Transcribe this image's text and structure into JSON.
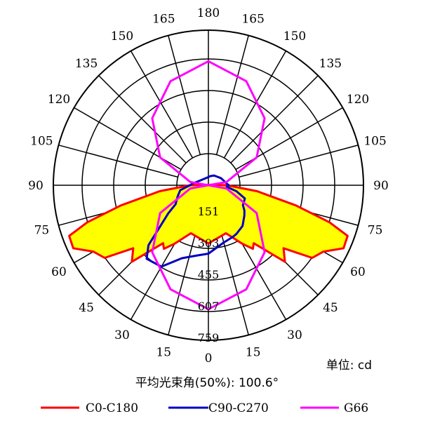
{
  "chart_data": {
    "type": "polar",
    "title": "",
    "unit_label": "单位: cd",
    "beam_angle_label": "平均光束角(50%): 100.6°",
    "angle_ticks": [
      "0",
      "15",
      "30",
      "45",
      "60",
      "75",
      "90",
      "105",
      "120",
      "135",
      "150",
      "165",
      "180",
      "165",
      "150",
      "135",
      "120",
      "105",
      "90",
      "75",
      "60",
      "45",
      "30",
      "15"
    ],
    "radial_ticks": [
      "151",
      "303",
      "455",
      "607",
      "759"
    ],
    "r_max": 759,
    "series": [
      {
        "name": "C0-C180",
        "color": "#ff0000",
        "fill": "#ffff00",
        "curve": [
          [
            0,
            285
          ],
          [
            20,
            250
          ],
          [
            30,
            330
          ],
          [
            35,
            380
          ],
          [
            38,
            360
          ],
          [
            45,
            530
          ],
          [
            50,
            480
          ],
          [
            55,
            620
          ],
          [
            60,
            650
          ],
          [
            65,
            730
          ],
          [
            70,
            725
          ],
          [
            73,
            620
          ],
          [
            77,
            440
          ],
          [
            83,
            240
          ],
          [
            88,
            110
          ],
          [
            90,
            90
          ],
          [
            95,
            25
          ]
        ],
        "mirror": true
      },
      {
        "name": "C90-C270",
        "color": "#0000c0",
        "fill": "none",
        "curve": [
          [
            -95,
            80
          ],
          [
            -90,
            90
          ],
          [
            -85,
            110
          ],
          [
            -80,
            140
          ],
          [
            -70,
            160
          ],
          [
            -60,
            185
          ],
          [
            -55,
            240
          ],
          [
            -45,
            415
          ],
          [
            -40,
            470
          ],
          [
            -30,
            460
          ],
          [
            -20,
            380
          ],
          [
            -10,
            350
          ],
          [
            0,
            335
          ],
          [
            15,
            290
          ],
          [
            25,
            280
          ],
          [
            30,
            275
          ],
          [
            40,
            260
          ],
          [
            50,
            230
          ],
          [
            55,
            215
          ],
          [
            60,
            195
          ],
          [
            70,
            190
          ],
          [
            78,
            140
          ],
          [
            85,
            90
          ],
          [
            90,
            100
          ],
          [
            95,
            90
          ],
          [
            100,
            85
          ],
          [
            120,
            70
          ],
          [
            150,
            55
          ],
          [
            170,
            45
          ],
          [
            180,
            40
          ]
        ],
        "mirror": false
      },
      {
        "name": "G66",
        "color": "#ff00ff",
        "fill": "none",
        "curve": [
          [
            0,
            607
          ],
          [
            20,
            542
          ],
          [
            40,
            428
          ],
          [
            60,
            273
          ],
          [
            80,
            90
          ],
          [
            90,
            1
          ],
          [
            100,
            90
          ],
          [
            120,
            273
          ],
          [
            140,
            428
          ],
          [
            160,
            542
          ],
          [
            180,
            607
          ]
        ],
        "mirror": true
      }
    ]
  }
}
